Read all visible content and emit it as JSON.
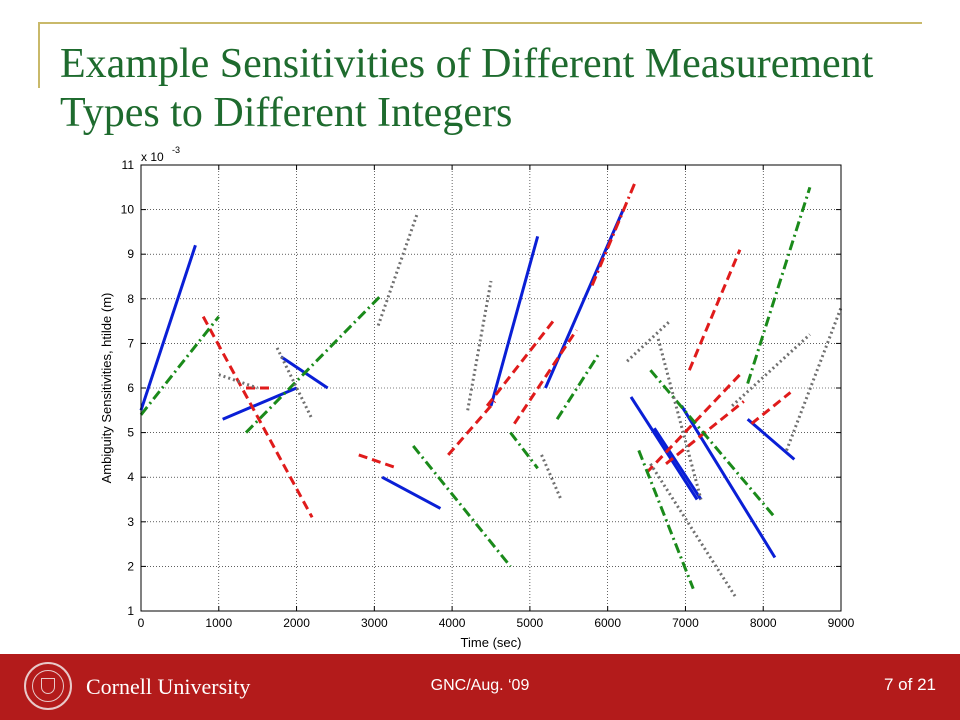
{
  "slide": {
    "title": "Example Sensitivities of Different Measurement Types to Different Integers",
    "footer_org": "Cornell University",
    "footer_conf": "GNC/Aug. ‘09",
    "page": "7 of 21"
  },
  "chart_data": {
    "type": "line",
    "xlabel": "Time (sec)",
    "ylabel": "Ambiguity Sensitivities, htilde (m)",
    "y_multiplier_base": "x 10",
    "y_multiplier_exp": "-3",
    "xlim": [
      0,
      9000
    ],
    "ylim": [
      1,
      11
    ],
    "xticks": [
      0,
      1000,
      2000,
      3000,
      4000,
      5000,
      6000,
      7000,
      8000,
      9000
    ],
    "yticks": [
      1,
      2,
      3,
      4,
      5,
      6,
      7,
      8,
      9,
      10,
      11
    ],
    "grid": true,
    "colors": {
      "blue": "#0a1fd6",
      "red": "#e01b1b",
      "green": "#1a8a1a",
      "gray": "#707070"
    },
    "segments": [
      {
        "color": "blue",
        "style": "solid",
        "x": [
          0,
          700
        ],
        "y": [
          5.5,
          9.2
        ]
      },
      {
        "color": "blue",
        "style": "solid",
        "x": [
          1050,
          2000
        ],
        "y": [
          5.3,
          6.0
        ]
      },
      {
        "color": "blue",
        "style": "solid",
        "x": [
          1800,
          2400
        ],
        "y": [
          6.7,
          6.0
        ]
      },
      {
        "color": "blue",
        "style": "solid",
        "x": [
          3100,
          3850
        ],
        "y": [
          4.0,
          3.3
        ]
      },
      {
        "color": "blue",
        "style": "solid",
        "x": [
          4500,
          5100
        ],
        "y": [
          5.6,
          9.4
        ]
      },
      {
        "color": "blue",
        "style": "solid",
        "x": [
          5200,
          6200
        ],
        "y": [
          6.0,
          10.0
        ]
      },
      {
        "color": "blue",
        "style": "solid",
        "x": [
          6300,
          7150
        ],
        "y": [
          5.8,
          3.5
        ]
      },
      {
        "color": "blue",
        "style": "solid",
        "x": [
          6600,
          7200
        ],
        "y": [
          5.1,
          3.5
        ]
      },
      {
        "color": "blue",
        "style": "solid",
        "x": [
          6950,
          8150
        ],
        "y": [
          5.6,
          2.2
        ]
      },
      {
        "color": "blue",
        "style": "solid",
        "x": [
          7800,
          8400
        ],
        "y": [
          5.3,
          4.4
        ]
      },
      {
        "color": "red",
        "style": "dashed",
        "x": [
          800,
          2200
        ],
        "y": [
          7.6,
          3.1
        ]
      },
      {
        "color": "red",
        "style": "dashed",
        "x": [
          1350,
          1650
        ],
        "y": [
          6.0,
          6.0
        ]
      },
      {
        "color": "red",
        "style": "dashed",
        "x": [
          2800,
          3300
        ],
        "y": [
          4.5,
          4.2
        ]
      },
      {
        "color": "red",
        "style": "dashed",
        "x": [
          3950,
          4550
        ],
        "y": [
          4.5,
          5.7
        ]
      },
      {
        "color": "red",
        "style": "dashed",
        "x": [
          4450,
          5300
        ],
        "y": [
          5.6,
          7.5
        ]
      },
      {
        "color": "red",
        "style": "dashed",
        "x": [
          4800,
          5600
        ],
        "y": [
          5.2,
          7.3
        ]
      },
      {
        "color": "red",
        "style": "dashdot",
        "x": [
          5800,
          6350
        ],
        "y": [
          8.3,
          10.6
        ]
      },
      {
        "color": "red",
        "style": "dashed",
        "x": [
          6500,
          7700
        ],
        "y": [
          4.1,
          6.3
        ]
      },
      {
        "color": "red",
        "style": "dashed",
        "x": [
          6750,
          7750
        ],
        "y": [
          4.3,
          5.7
        ]
      },
      {
        "color": "red",
        "style": "dashed",
        "x": [
          7050,
          7700
        ],
        "y": [
          6.4,
          9.1
        ]
      },
      {
        "color": "red",
        "style": "dashed",
        "x": [
          7850,
          8350
        ],
        "y": [
          5.2,
          5.9
        ]
      },
      {
        "color": "green",
        "style": "dashdot",
        "x": [
          0,
          1000
        ],
        "y": [
          5.4,
          7.6
        ]
      },
      {
        "color": "green",
        "style": "dashdot",
        "x": [
          1350,
          3100
        ],
        "y": [
          5.0,
          8.1
        ]
      },
      {
        "color": "green",
        "style": "dashdot",
        "x": [
          3500,
          4750
        ],
        "y": [
          4.7,
          2.0
        ]
      },
      {
        "color": "green",
        "style": "dashdot",
        "x": [
          4750,
          5100
        ],
        "y": [
          5.0,
          4.2
        ]
      },
      {
        "color": "green",
        "style": "dashdot",
        "x": [
          5350,
          5900
        ],
        "y": [
          5.3,
          6.8
        ]
      },
      {
        "color": "green",
        "style": "dashdot",
        "x": [
          6400,
          7100
        ],
        "y": [
          4.6,
          1.5
        ]
      },
      {
        "color": "green",
        "style": "dashdot",
        "x": [
          6550,
          8150
        ],
        "y": [
          6.4,
          3.1
        ]
      },
      {
        "color": "green",
        "style": "dashdot",
        "x": [
          7800,
          8600
        ],
        "y": [
          6.1,
          10.5
        ]
      },
      {
        "color": "gray",
        "style": "dotted",
        "x": [
          1000,
          1500
        ],
        "y": [
          6.3,
          6.0
        ]
      },
      {
        "color": "gray",
        "style": "dotted",
        "x": [
          1750,
          2200
        ],
        "y": [
          6.9,
          5.3
        ]
      },
      {
        "color": "gray",
        "style": "dotted",
        "x": [
          3050,
          3550
        ],
        "y": [
          7.4,
          9.9
        ]
      },
      {
        "color": "gray",
        "style": "dotted",
        "x": [
          4200,
          4500
        ],
        "y": [
          5.5,
          8.4
        ]
      },
      {
        "color": "gray",
        "style": "dotted",
        "x": [
          5150,
          5400
        ],
        "y": [
          4.5,
          3.5
        ]
      },
      {
        "color": "gray",
        "style": "dotted",
        "x": [
          6250,
          6800
        ],
        "y": [
          6.6,
          7.5
        ]
      },
      {
        "color": "gray",
        "style": "dotted",
        "x": [
          6550,
          7650
        ],
        "y": [
          4.3,
          1.3
        ]
      },
      {
        "color": "gray",
        "style": "dotted",
        "x": [
          6650,
          7200
        ],
        "y": [
          7.1,
          3.5
        ]
      },
      {
        "color": "gray",
        "style": "dotted",
        "x": [
          7600,
          8600
        ],
        "y": [
          5.6,
          7.2
        ]
      },
      {
        "color": "gray",
        "style": "dotted",
        "x": [
          8300,
          9000
        ],
        "y": [
          4.6,
          7.8
        ]
      }
    ]
  }
}
